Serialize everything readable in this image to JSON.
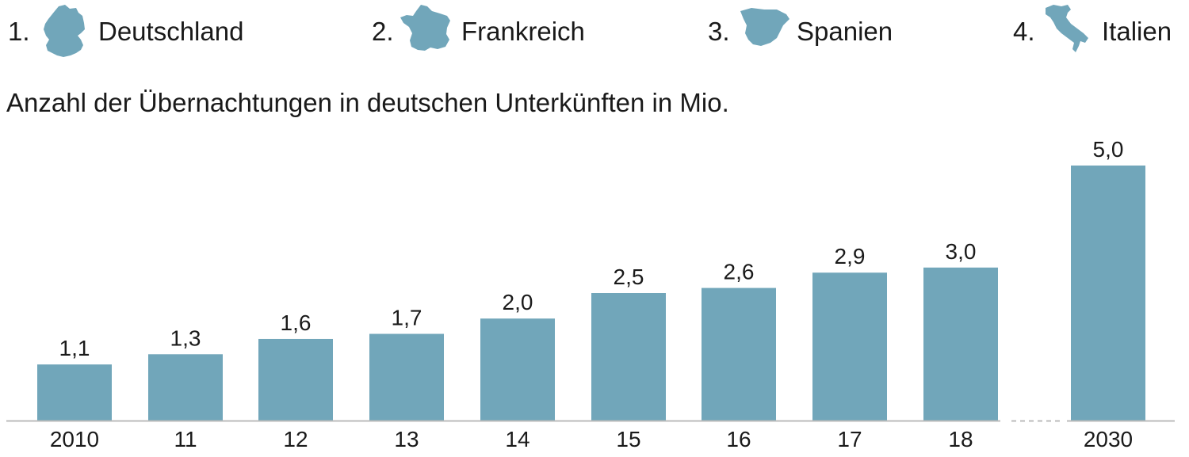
{
  "ranking": [
    {
      "rank": "1.",
      "country": "Deutschland",
      "icon": "germany-map-icon"
    },
    {
      "rank": "2.",
      "country": "Frankreich",
      "icon": "france-map-icon"
    },
    {
      "rank": "3.",
      "country": "Spanien",
      "icon": "spain-map-icon"
    },
    {
      "rank": "4.",
      "country": "Italien",
      "icon": "italy-map-icon"
    }
  ],
  "colors": {
    "bar": "#71a6ba",
    "text": "#1a1a1a",
    "axis": "#bbbbbb"
  },
  "chart_data": {
    "type": "bar",
    "title": "",
    "subtitle": "Anzahl der Übernachtungen in deutschen Unterkünften in Mio.",
    "categories": [
      "2010",
      "11",
      "12",
      "13",
      "14",
      "15",
      "16",
      "17",
      "18",
      "2030"
    ],
    "values": [
      1.1,
      1.3,
      1.6,
      1.7,
      2.0,
      2.5,
      2.6,
      2.9,
      3.0,
      5.0
    ],
    "value_labels": [
      "1,1",
      "1,3",
      "1,6",
      "1,7",
      "2,0",
      "2,5",
      "2,6",
      "2,9",
      "3,0",
      "5,0"
    ],
    "axis_break_between": [
      "18",
      "2030"
    ],
    "xlabel": "",
    "ylabel": "",
    "ylim": [
      0,
      5.0
    ],
    "grid": false,
    "legend": "none"
  }
}
